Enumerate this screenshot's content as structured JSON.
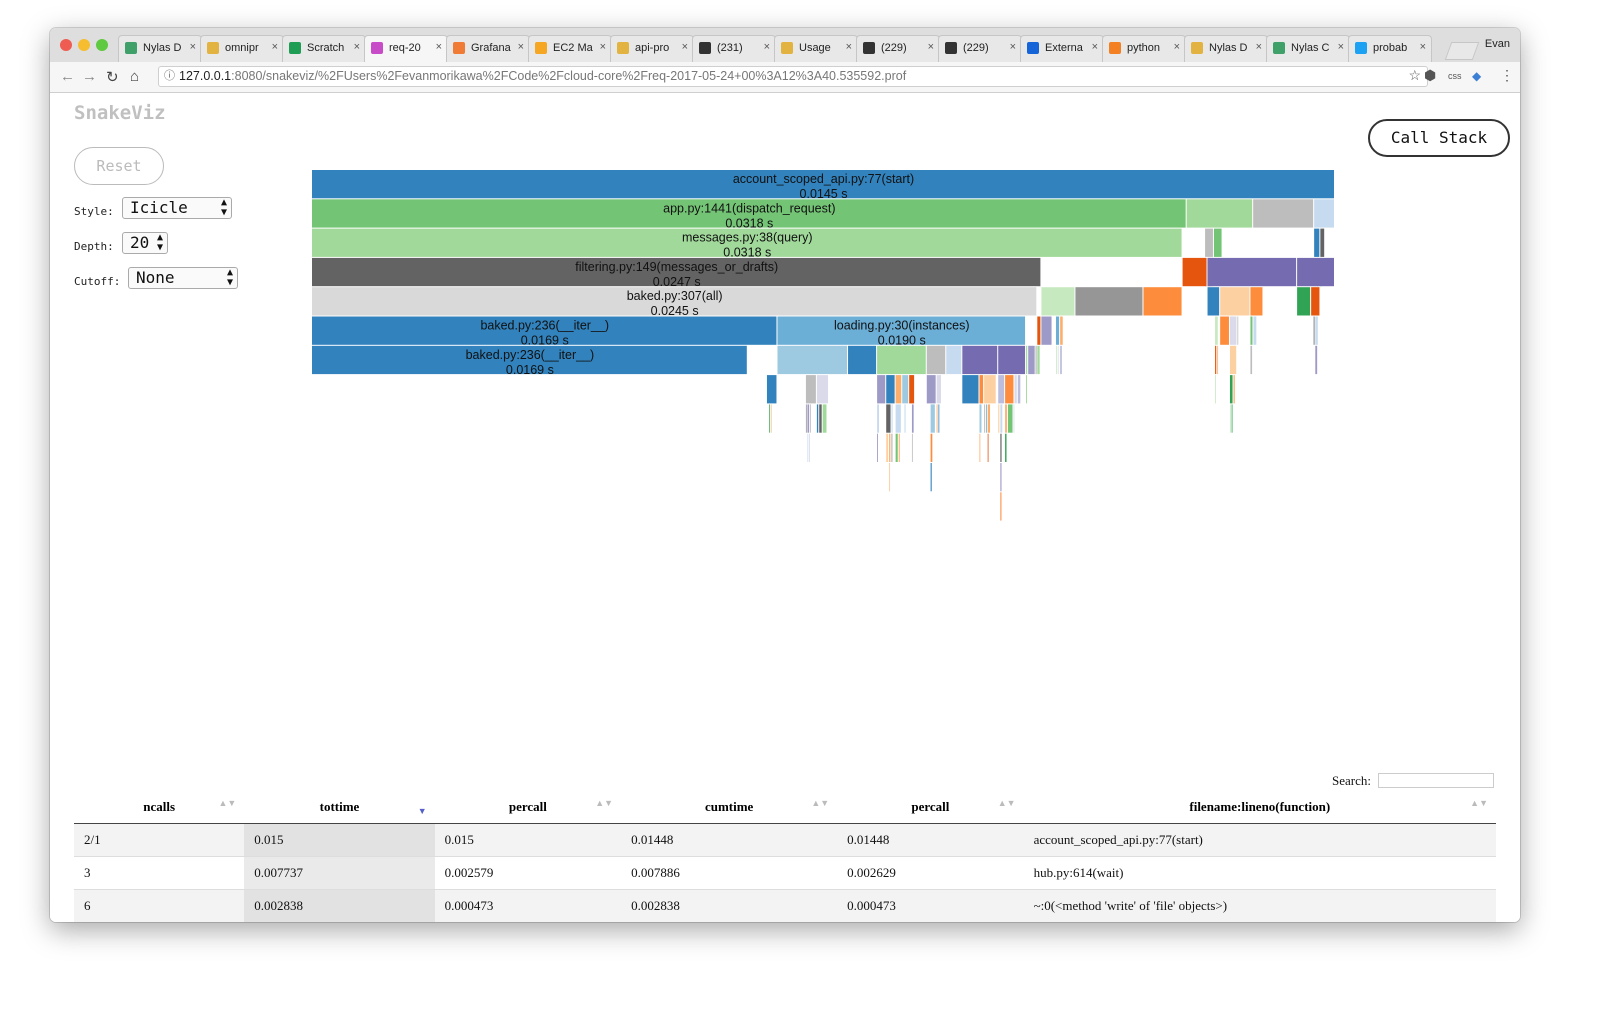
{
  "browser": {
    "traffic_colors": [
      "#ee5c52",
      "#f5bd2f",
      "#5fc93f"
    ],
    "tabs": [
      {
        "label": "Nylas D",
        "icon": "nylas-icon",
        "color": "#3fa06a"
      },
      {
        "label": "omnipr",
        "icon": "chrome-icon",
        "color": "#e3b341"
      },
      {
        "label": "Scratch",
        "icon": "sheets-icon",
        "color": "#1f9d55"
      },
      {
        "label": "req-20",
        "icon": "snakeviz-icon",
        "color": "#c84cc8",
        "active": true
      },
      {
        "label": "Grafana",
        "icon": "grafana-icon",
        "color": "#f07b34"
      },
      {
        "label": "EC2 Ma",
        "icon": "aws-icon",
        "color": "#f5a623"
      },
      {
        "label": "api-pro",
        "icon": "chrome-icon",
        "color": "#e3b341"
      },
      {
        "label": "(231)",
        "icon": "zebra-icon",
        "color": "#333333"
      },
      {
        "label": "Usage",
        "icon": "chrome-icon",
        "color": "#e3b341"
      },
      {
        "label": "(229)",
        "icon": "zebra-icon",
        "color": "#333333"
      },
      {
        "label": "(229)",
        "icon": "zebra-icon",
        "color": "#333333"
      },
      {
        "label": "Externa",
        "icon": "dropbox-icon",
        "color": "#1565d8"
      },
      {
        "label": "python",
        "icon": "stackoverflow-icon",
        "color": "#f48024"
      },
      {
        "label": "Nylas D",
        "icon": "chrome-icon",
        "color": "#e3b341"
      },
      {
        "label": "Nylas C",
        "icon": "nylas-icon",
        "color": "#3fa06a"
      },
      {
        "label": "probab",
        "icon": "twitter-icon",
        "color": "#1da1f2"
      }
    ],
    "close_glyph": "×",
    "profile": "Evan",
    "url_host": "127.0.0.1",
    "url_path": ":8080/snakeviz/%2FUsers%2Fevanmorikawa%2FCode%2Fcloud-core%2Freq-2017-05-24+00%3A12%3A40.535592.prof",
    "ext_css": "css"
  },
  "app": {
    "logo": "SnakeViz",
    "reset_label": "Reset",
    "style_label": "Style:",
    "style_value": "Icicle",
    "depth_label": "Depth:",
    "depth_value": "20",
    "cutoff_label": "Cutoff:",
    "cutoff_value": "None",
    "call_stack_label": "Call Stack",
    "search_label": "Search:"
  },
  "chart_data": {
    "type": "icicle",
    "root_total_s": 0.0318,
    "nodes": [
      {
        "label": "account_scoped_api.py:77(start)",
        "time": "0.0145 s",
        "level": 0,
        "start": 0.0,
        "end": 1.0,
        "color": "#3182bd"
      },
      {
        "label": "app.py:1441(dispatch_request)",
        "time": "0.0318 s",
        "level": 1,
        "start": 0.0,
        "end": 0.855,
        "color": "#74c476"
      },
      {
        "label": "messages.py:38(query)",
        "time": "0.0318 s",
        "level": 2,
        "start": 0.0,
        "end": 0.851,
        "color": "#a1d99b"
      },
      {
        "label": "filtering.py:149(messages_or_drafts)",
        "time": "0.0247 s",
        "level": 3,
        "start": 0.0,
        "end": 0.713,
        "color": "#636363"
      },
      {
        "label": "baked.py:307(all)",
        "time": "0.0245 s",
        "level": 4,
        "start": 0.0,
        "end": 0.709,
        "color": "#d9d9d9"
      },
      {
        "label": "baked.py:236(__iter__)",
        "time": "0.0169 s",
        "level": 5,
        "start": 0.0,
        "end": 0.455,
        "color": "#3182bd"
      },
      {
        "label": "loading.py:30(instances)",
        "time": "0.0190 s",
        "level": 5,
        "start": 0.455,
        "end": 0.698,
        "color": "#6baed6"
      },
      {
        "label": "baked.py:236(__iter__)",
        "time": "0.0169 s",
        "level": 6,
        "start": 0.0,
        "end": 0.426,
        "color": "#3182bd"
      }
    ]
  },
  "table": {
    "columns": [
      "ncalls",
      "tottime",
      "percall",
      "cumtime",
      "percall",
      "filename:lineno(function)"
    ],
    "sorted_column": 1,
    "sort_glyph": "▲▼",
    "sort_active_glyph": "▼",
    "rows": [
      [
        "2/1",
        "0.015",
        "0.015",
        "0.01448",
        "0.01448",
        "account_scoped_api.py:77(start)"
      ],
      [
        "3",
        "0.007737",
        "0.002579",
        "0.007886",
        "0.002629",
        "hub.py:614(wait)"
      ],
      [
        "6",
        "0.002838",
        "0.000473",
        "0.002838",
        "0.000473",
        "~:0(<method 'write' of 'file' objects>)"
      ]
    ]
  }
}
